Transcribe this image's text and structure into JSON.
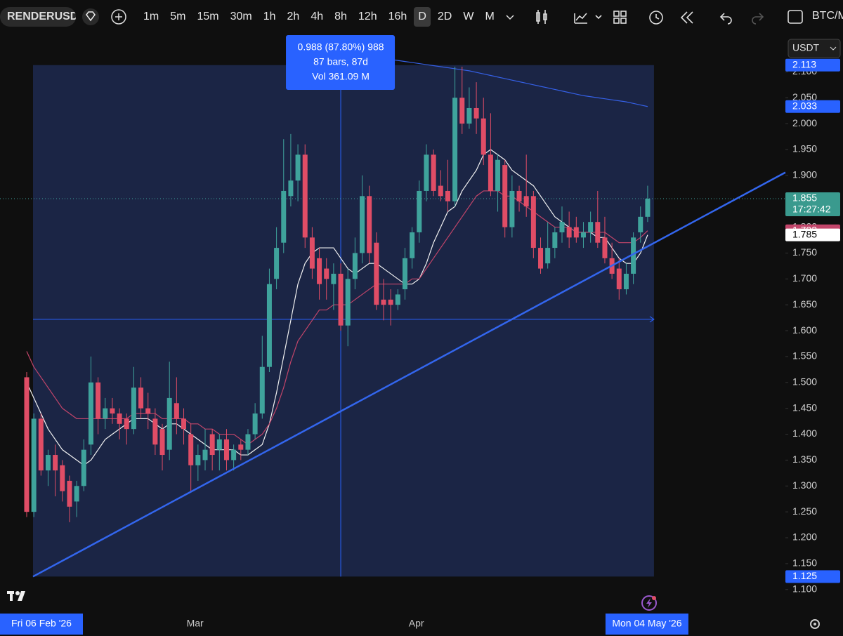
{
  "toolbar": {
    "symbol": "RENDERUSD",
    "intervals": [
      "1m",
      "5m",
      "15m",
      "30m",
      "1h",
      "2h",
      "4h",
      "8h",
      "12h",
      "16h",
      "D",
      "2D",
      "W",
      "M"
    ],
    "active_interval": "D",
    "compare_symbol": "BTC/M"
  },
  "chart_data": {
    "type": "candlestick",
    "currency": "USDT",
    "categories": [
      "Fri 06 Feb '26",
      null,
      null,
      null,
      null,
      null,
      null,
      null,
      null,
      null,
      null,
      null,
      null,
      null,
      null,
      null,
      null,
      null,
      null,
      null,
      null,
      null,
      null,
      "Mar",
      null,
      null,
      null,
      null,
      null,
      null,
      null,
      null,
      null,
      null,
      null,
      null,
      null,
      null,
      null,
      null,
      null,
      null,
      null,
      null,
      null,
      null,
      null,
      null,
      null,
      null,
      null,
      null,
      null,
      null,
      "Apr",
      null,
      null,
      null,
      null,
      null,
      null,
      null,
      null,
      null,
      null,
      null,
      null,
      null,
      null,
      null,
      null,
      null,
      null,
      null,
      null,
      null,
      null,
      null,
      null,
      null,
      null,
      null,
      null,
      null,
      null,
      null,
      null,
      "Mon 04 May '26"
    ],
    "open": [
      1.51,
      1.25,
      1.43,
      1.33,
      1.36,
      1.34,
      1.31,
      1.27,
      1.3,
      1.38,
      1.5,
      1.43,
      1.45,
      1.44,
      1.43,
      1.41,
      1.49,
      1.45,
      1.43,
      1.41,
      1.37,
      1.46,
      1.43,
      1.4,
      1.34,
      1.35,
      1.4,
      1.37,
      1.39,
      1.35,
      1.38,
      1.37,
      1.4,
      1.44,
      1.53,
      1.7,
      1.77,
      1.86,
      1.89,
      1.94,
      1.78,
      1.74,
      1.72,
      1.69,
      1.71,
      1.61,
      1.7,
      1.75,
      1.86,
      1.77,
      1.66,
      1.66,
      1.65,
      1.68,
      1.74,
      1.79,
      1.87,
      1.94,
      1.88,
      1.87,
      1.85,
      2.05,
      2.0,
      2.03,
      2.01,
      1.94,
      1.87,
      1.92,
      1.8,
      1.87,
      1.86,
      1.86,
      1.76,
      1.73,
      1.76,
      1.79,
      1.8,
      1.8,
      1.78,
      1.79,
      1.81,
      1.78,
      1.74,
      1.72,
      1.68,
      1.71,
      1.79,
      1.82
    ],
    "high": [
      1.52,
      1.44,
      1.44,
      1.37,
      1.38,
      1.35,
      1.32,
      1.31,
      1.39,
      1.55,
      1.51,
      1.47,
      1.47,
      1.45,
      1.44,
      1.53,
      1.51,
      1.48,
      1.45,
      1.42,
      1.54,
      1.51,
      1.45,
      1.42,
      1.38,
      1.41,
      1.41,
      1.4,
      1.41,
      1.38,
      1.39,
      1.41,
      1.46,
      1.59,
      1.72,
      1.8,
      1.97,
      1.98,
      1.96,
      1.96,
      1.8,
      1.76,
      1.74,
      1.73,
      1.73,
      1.72,
      1.78,
      1.9,
      1.88,
      1.79,
      1.7,
      1.68,
      1.68,
      1.76,
      1.8,
      1.89,
      1.96,
      1.95,
      1.91,
      1.93,
      2.11,
      2.11,
      2.07,
      2.08,
      2.05,
      2.02,
      1.94,
      1.93,
      1.9,
      1.88,
      1.94,
      1.87,
      1.78,
      1.81,
      1.8,
      1.84,
      1.83,
      1.82,
      1.81,
      1.83,
      1.87,
      1.82,
      1.77,
      1.74,
      1.73,
      1.79,
      1.84,
      1.88
    ],
    "low": [
      1.24,
      1.24,
      1.32,
      1.3,
      1.28,
      1.27,
      1.23,
      1.24,
      1.29,
      1.36,
      1.4,
      1.41,
      1.42,
      1.39,
      1.38,
      1.4,
      1.43,
      1.41,
      1.36,
      1.33,
      1.35,
      1.4,
      1.38,
      1.29,
      1.31,
      1.33,
      1.33,
      1.33,
      1.33,
      1.33,
      1.35,
      1.36,
      1.39,
      1.43,
      1.52,
      1.68,
      1.75,
      1.84,
      1.85,
      1.76,
      1.7,
      1.66,
      1.66,
      1.64,
      1.6,
      1.57,
      1.68,
      1.73,
      1.73,
      1.64,
      1.62,
      1.61,
      1.64,
      1.66,
      1.72,
      1.77,
      1.85,
      1.86,
      1.85,
      1.83,
      1.84,
      1.98,
      1.99,
      1.98,
      1.92,
      1.86,
      1.83,
      1.78,
      1.78,
      1.83,
      1.82,
      1.74,
      1.71,
      1.72,
      1.74,
      1.77,
      1.76,
      1.77,
      1.76,
      1.77,
      1.76,
      1.73,
      1.7,
      1.66,
      1.67,
      1.69,
      1.77,
      1.81
    ],
    "close": [
      1.25,
      1.43,
      1.33,
      1.36,
      1.33,
      1.29,
      1.26,
      1.3,
      1.37,
      1.5,
      1.43,
      1.45,
      1.44,
      1.42,
      1.41,
      1.49,
      1.45,
      1.44,
      1.38,
      1.36,
      1.47,
      1.43,
      1.41,
      1.34,
      1.36,
      1.37,
      1.36,
      1.39,
      1.35,
      1.37,
      1.37,
      1.4,
      1.44,
      1.53,
      1.69,
      1.76,
      1.87,
      1.89,
      1.94,
      1.78,
      1.72,
      1.69,
      1.7,
      1.71,
      1.61,
      1.7,
      1.75,
      1.86,
      1.75,
      1.65,
      1.65,
      1.65,
      1.67,
      1.74,
      1.79,
      1.87,
      1.94,
      1.87,
      1.86,
      1.85,
      2.05,
      2.0,
      2.03,
      2.01,
      1.94,
      1.87,
      1.93,
      1.8,
      1.87,
      1.85,
      1.84,
      1.76,
      1.72,
      1.76,
      1.79,
      1.81,
      1.78,
      1.78,
      1.79,
      1.81,
      1.77,
      1.74,
      1.71,
      1.68,
      1.71,
      1.78,
      1.82,
      1.855
    ],
    "up_color": "#3fa39c",
    "down_color": "#e04d66",
    "series": [
      {
        "color": "#f2f2f2",
        "values": [
          1.5,
          1.47,
          1.44,
          1.41,
          1.39,
          1.37,
          1.36,
          1.35,
          1.34,
          1.35,
          1.37,
          1.39,
          1.4,
          1.41,
          1.42,
          1.43,
          1.43,
          1.43,
          1.42,
          1.41,
          1.42,
          1.42,
          1.41,
          1.4,
          1.39,
          1.38,
          1.37,
          1.37,
          1.37,
          1.37,
          1.36,
          1.36,
          1.37,
          1.38,
          1.42,
          1.48,
          1.55,
          1.62,
          1.69,
          1.73,
          1.75,
          1.76,
          1.76,
          1.76,
          1.74,
          1.72,
          1.71,
          1.72,
          1.73,
          1.73,
          1.72,
          1.71,
          1.7,
          1.69,
          1.69,
          1.7,
          1.73,
          1.77,
          1.8,
          1.83,
          1.84,
          1.87,
          1.89,
          1.91,
          1.94,
          1.95,
          1.94,
          1.93,
          1.91,
          1.9,
          1.89,
          1.88,
          1.86,
          1.84,
          1.82,
          1.81,
          1.8,
          1.79,
          1.79,
          1.79,
          1.78,
          1.78,
          1.76,
          1.74,
          1.73,
          1.73,
          1.75,
          1.785
        ]
      },
      {
        "color": "#c2456a",
        "values": [
          1.56,
          1.53,
          1.51,
          1.49,
          1.47,
          1.45,
          1.44,
          1.43,
          1.43,
          1.43,
          1.43,
          1.43,
          1.43,
          1.43,
          1.43,
          1.44,
          1.44,
          1.44,
          1.44,
          1.43,
          1.43,
          1.43,
          1.43,
          1.42,
          1.42,
          1.41,
          1.41,
          1.4,
          1.4,
          1.4,
          1.39,
          1.38,
          1.39,
          1.4,
          1.42,
          1.45,
          1.49,
          1.54,
          1.58,
          1.6,
          1.62,
          1.64,
          1.64,
          1.65,
          1.65,
          1.65,
          1.66,
          1.67,
          1.68,
          1.69,
          1.69,
          1.69,
          1.69,
          1.69,
          1.7,
          1.7,
          1.72,
          1.74,
          1.76,
          1.78,
          1.8,
          1.82,
          1.84,
          1.86,
          1.87,
          1.87,
          1.87,
          1.86,
          1.86,
          1.85,
          1.84,
          1.83,
          1.82,
          1.81,
          1.8,
          1.8,
          1.8,
          1.79,
          1.79,
          1.79,
          1.79,
          1.79,
          1.78,
          1.77,
          1.77,
          1.77,
          1.78,
          1.793
        ]
      },
      {
        "color": "#3560e6",
        "values": [
          null,
          null,
          null,
          null,
          null,
          null,
          null,
          null,
          null,
          null,
          null,
          null,
          null,
          null,
          null,
          null,
          null,
          null,
          null,
          null,
          null,
          null,
          null,
          null,
          null,
          null,
          null,
          null,
          null,
          null,
          null,
          null,
          null,
          null,
          null,
          null,
          null,
          null,
          null,
          null,
          null,
          null,
          null,
          null,
          null,
          null,
          null,
          null,
          null,
          null,
          null,
          2.124,
          2.122,
          2.12,
          2.118,
          2.116,
          2.114,
          2.112,
          2.11,
          2.108,
          2.106,
          2.104,
          2.102,
          2.099,
          2.096,
          2.093,
          2.09,
          2.087,
          2.084,
          2.081,
          2.078,
          2.075,
          2.072,
          2.069,
          2.066,
          2.063,
          2.06,
          2.057,
          2.054,
          2.052,
          2.05,
          2.048,
          2.046,
          2.044,
          2.042,
          2.039,
          2.036,
          2.033
        ]
      }
    ],
    "ylim": [
      1.059,
      2.171
    ],
    "yticks": [
      {
        "value": 1.1,
        "label": "1.100"
      },
      {
        "value": 1.15,
        "label": "1.150"
      },
      {
        "value": 1.2,
        "label": "1.200"
      },
      {
        "value": 1.25,
        "label": "1.250"
      },
      {
        "value": 1.3,
        "label": "1.300"
      },
      {
        "value": 1.35,
        "label": "1.350"
      },
      {
        "value": 1.4,
        "label": "1.400"
      },
      {
        "value": 1.45,
        "label": "1.450"
      },
      {
        "value": 1.5,
        "label": "1.500"
      },
      {
        "value": 1.55,
        "label": "1.550"
      },
      {
        "value": 1.6,
        "label": "1.600"
      },
      {
        "value": 1.65,
        "label": "1.650"
      },
      {
        "value": 1.7,
        "label": "1.700"
      },
      {
        "value": 1.75,
        "label": "1.750"
      },
      {
        "value": 1.8,
        "label": "1.800"
      },
      {
        "value": 1.85,
        "label": "1.850"
      },
      {
        "value": 1.9,
        "label": "1.900"
      },
      {
        "value": 1.95,
        "label": "1.950"
      },
      {
        "value": 2.0,
        "label": "2.000"
      },
      {
        "value": 2.05,
        "label": "2.050"
      },
      {
        "value": 2.1,
        "label": "2.100"
      }
    ],
    "measure": {
      "from": 0,
      "to": 87,
      "low": 1.125,
      "high": 2.113,
      "lines": [
        "0.988 (87.80%) 988",
        "87 bars, 87d",
        "Vol 361.09 M"
      ],
      "color": "#2962ff"
    },
    "crosshair": {
      "x": 44
    },
    "hline": 1.622,
    "trendline": {
      "x": [
        0,
        87
      ],
      "y": [
        1.125,
        1.764
      ],
      "color": "#3366ee"
    },
    "price_badges": [
      {
        "value": 2.113,
        "color": "#2962ff"
      },
      {
        "value": 2.033,
        "color": "#2962ff"
      },
      {
        "value": 1.855,
        "color": "#3a9a8e",
        "countdown": "17:27:42"
      },
      {
        "value": 1.793,
        "color": "#c2456a"
      },
      {
        "value": 1.785,
        "color": "#ffffff"
      },
      {
        "value": 1.125,
        "color": "#2962ff"
      }
    ]
  }
}
